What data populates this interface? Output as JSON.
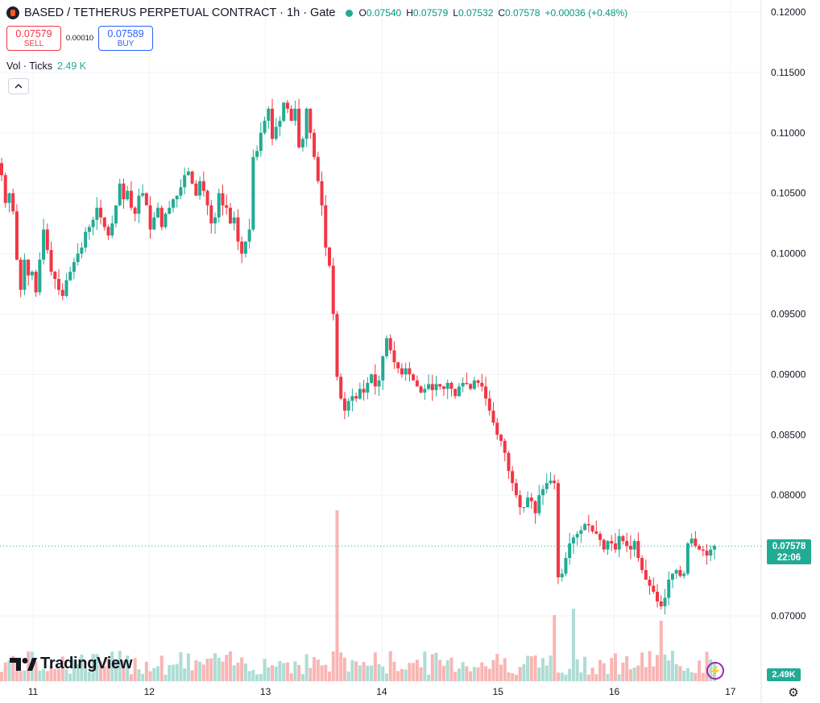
{
  "header": {
    "title": "BASED / TETHERUS PERPETUAL CONTRACT · 1h · Gate",
    "ohlc": {
      "o_label": "O",
      "o": "0.07540",
      "h_label": "H",
      "h": "0.07579",
      "l_label": "L",
      "l": "0.07532",
      "c_label": "C",
      "c": "0.07578",
      "change": "+0.00036 (+0.48%)"
    }
  },
  "trade": {
    "sell_price": "0.07579",
    "sell_label": "SELL",
    "spread": "0.00010",
    "buy_price": "0.07589",
    "buy_label": "BUY"
  },
  "volume_legend": {
    "label": "Vol · Ticks",
    "value": "2.49 K"
  },
  "brand": {
    "name": "TradingView"
  },
  "last_price_tag": {
    "price": "0.07578",
    "countdown": "22:06"
  },
  "volume_tag": "2.49K",
  "colors": {
    "up": "#22ab94",
    "down": "#f23645",
    "up_vol": "#9fd7cd",
    "down_vol": "#f7a9a7"
  },
  "icons": [
    "collapse-chevron-icon",
    "lightning-icon",
    "settings-gear-icon",
    "tradingview-logo-icon"
  ],
  "chart_data": {
    "type": "candlestick",
    "title": "BASED / TETHERUS PERPETUAL CONTRACT · 1h · Gate",
    "x_ticks": [
      "11",
      "12",
      "13",
      "14",
      "15",
      "16",
      "17"
    ],
    "y_ticks": [
      "0.12000",
      "0.11500",
      "0.11000",
      "0.10500",
      "0.10000",
      "0.09500",
      "0.09000",
      "0.08500",
      "0.08000",
      "0.07000"
    ],
    "ylim": [
      0.066,
      0.121
    ],
    "last_price": 0.07578,
    "series": [
      {
        "name": "Price",
        "close_path": [
          0.1065,
          0.1042,
          0.105,
          0.1035,
          0.0995,
          0.097,
          0.0995,
          0.0982,
          0.0985,
          0.0968,
          0.0995,
          0.102,
          0.1003,
          0.0985,
          0.0979,
          0.097,
          0.0965,
          0.0978,
          0.0985,
          0.0993,
          0.1,
          0.1005,
          0.1018,
          0.1022,
          0.1028,
          0.1038,
          0.103,
          0.1022,
          0.1015,
          0.1025,
          0.104,
          0.1058,
          0.1045,
          0.1052,
          0.1038,
          0.1033,
          0.1048,
          0.105,
          0.104,
          0.102,
          0.103,
          0.1038,
          0.1022,
          0.1033,
          0.1038,
          0.1045,
          0.1048,
          0.1055,
          0.1065,
          0.1068,
          0.1058,
          0.1048,
          0.106,
          0.1052,
          0.104,
          0.1025,
          0.103,
          0.105,
          0.104,
          0.1038,
          0.1025,
          0.103,
          0.101,
          0.1,
          0.101,
          0.102,
          0.108,
          0.1085,
          0.11,
          0.111,
          0.112,
          0.1095,
          0.1105,
          0.111,
          0.1125,
          0.112,
          0.111,
          0.112,
          0.1088,
          0.1095,
          0.112,
          0.11,
          0.108,
          0.106,
          0.104,
          0.1005,
          0.099,
          0.095,
          0.0898,
          0.088,
          0.087,
          0.0878,
          0.0882,
          0.088,
          0.0888,
          0.0885,
          0.0893,
          0.09,
          0.089,
          0.0895,
          0.0915,
          0.093,
          0.092,
          0.091,
          0.0905,
          0.09,
          0.0905,
          0.09,
          0.0895,
          0.089,
          0.0885,
          0.0888,
          0.0892,
          0.0887,
          0.0892,
          0.089,
          0.0888,
          0.0893,
          0.0888,
          0.0882,
          0.089,
          0.0893,
          0.0892,
          0.0888,
          0.0895,
          0.0893,
          0.089,
          0.088,
          0.087,
          0.086,
          0.085,
          0.0845,
          0.0835,
          0.082,
          0.081,
          0.08,
          0.079,
          0.079,
          0.0798,
          0.0795,
          0.0785,
          0.08,
          0.0805,
          0.081,
          0.0812,
          0.081,
          0.0732,
          0.0735,
          0.0748,
          0.076,
          0.0765,
          0.0768,
          0.0771,
          0.0776,
          0.0775,
          0.077,
          0.0768,
          0.0763,
          0.0755,
          0.0762,
          0.076,
          0.0755,
          0.0766,
          0.0762,
          0.0758,
          0.0755,
          0.0762,
          0.0748,
          0.0738,
          0.073,
          0.0725,
          0.072,
          0.0712,
          0.0708,
          0.0715,
          0.073,
          0.0735,
          0.0738,
          0.0733,
          0.0735,
          0.076,
          0.0764,
          0.0758,
          0.0755,
          0.0754,
          0.075,
          0.0755,
          0.0758
        ]
      }
    ]
  }
}
